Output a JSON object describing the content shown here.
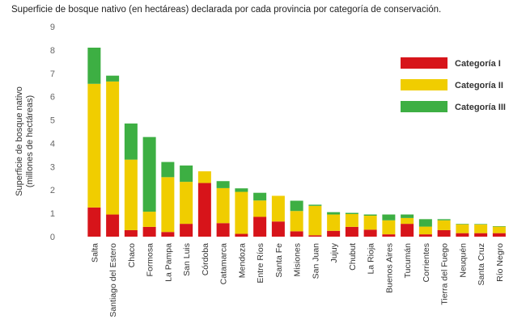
{
  "chart_data": {
    "type": "bar",
    "stacked": true,
    "title": "Superficie de bosque nativo (en hectáreas) declarada por cada provincia por categoría de conservación.",
    "ylabel": "Superficie de bosque nativo",
    "ylabel_sub": "(millones de hectáreas)",
    "ylim": [
      0,
      9
    ],
    "yticks": [
      "0",
      "1",
      "2",
      "3",
      "4",
      "5",
      "6",
      "7",
      "8",
      "9"
    ],
    "grid": false,
    "legend_position": "top-right",
    "categories": [
      "Salta",
      "Santiago del Estero",
      "Chaco",
      "Formosa",
      "La Pampa",
      "San Luis",
      "Córdoba",
      "Catamarca",
      "Mendoza",
      "Entre Ríos",
      "Santa Fe",
      "Misiones",
      "San Juan",
      "Jujuy",
      "Chubut",
      "La Rioja",
      "Buenos Aires",
      "Tucumán",
      "Corrientes",
      "Tierra del Fuego",
      "Neuquén",
      "Santa Cruz",
      "Río Negro"
    ],
    "series": [
      {
        "name": "Categoría I",
        "color": "#d7141a",
        "values": [
          1.25,
          0.95,
          0.28,
          0.42,
          0.2,
          0.55,
          2.3,
          0.58,
          0.12,
          0.85,
          0.65,
          0.23,
          0.06,
          0.25,
          0.42,
          0.3,
          0.1,
          0.55,
          0.1,
          0.28,
          0.15,
          0.15,
          0.15
        ]
      },
      {
        "name": "Categoría II",
        "color": "#f0cd00",
        "values": [
          5.3,
          5.7,
          3.02,
          0.65,
          2.35,
          1.8,
          0.5,
          1.5,
          1.8,
          0.7,
          1.1,
          0.87,
          1.26,
          0.7,
          0.55,
          0.6,
          0.6,
          0.25,
          0.33,
          0.42,
          0.38,
          0.37,
          0.28
        ]
      },
      {
        "name": "Categoría III",
        "color": "#3daf43",
        "values": [
          1.55,
          0.25,
          1.55,
          3.2,
          0.65,
          0.7,
          0.0,
          0.3,
          0.15,
          0.33,
          0.0,
          0.44,
          0.05,
          0.1,
          0.05,
          0.05,
          0.25,
          0.15,
          0.32,
          0.05,
          0.02,
          0.02,
          0.02
        ]
      }
    ]
  }
}
